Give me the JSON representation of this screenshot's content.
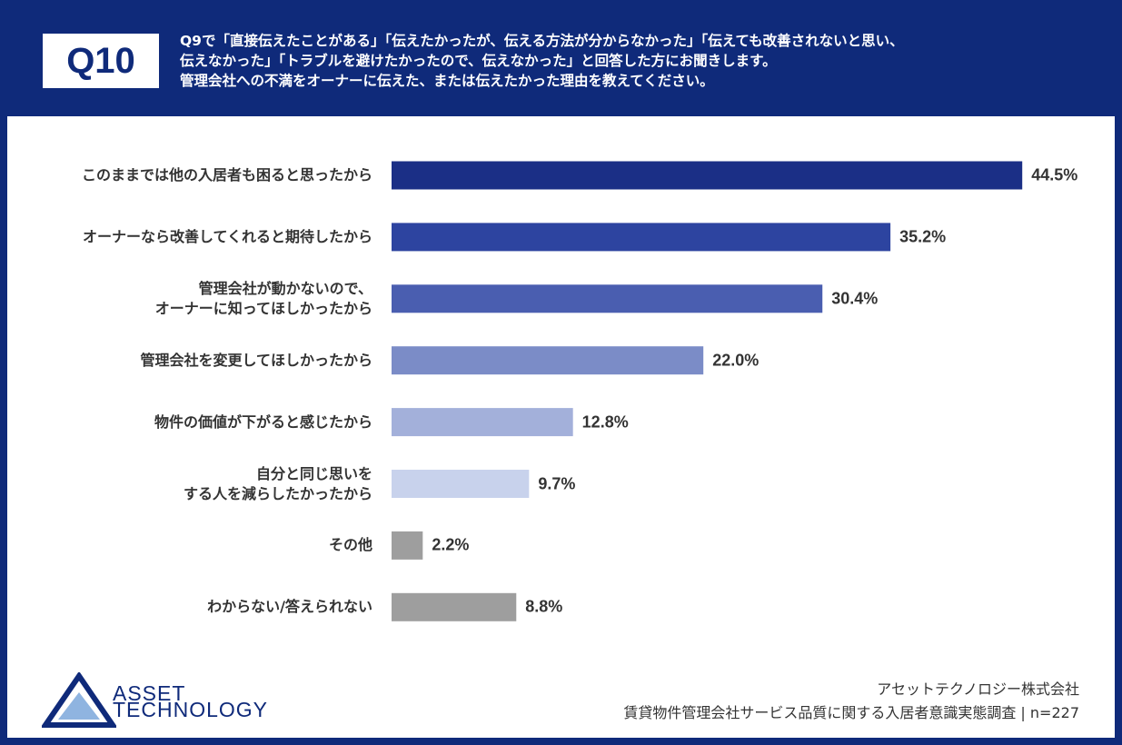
{
  "chart_data": {
    "type": "bar",
    "orientation": "horizontal",
    "title": "Q10",
    "subtitle": "Q9で「直接伝えたことがある」「伝えたかったが、伝える方法が分からなかった」「伝えても改善されないと思い、\n伝えなかった」「トラブルを避けたかったので、伝えなかった」と回答した方にお聞きします。\n管理会社への不満をオーナーに伝えた、または伝えたかった理由を教えてください。",
    "categories": [
      "このままでは他の入居者も困ると思ったから",
      "オーナーなら改善してくれると期待したから",
      "管理会社が動かないので、\nオーナーに知ってほしかったから",
      "管理会社を変更してほしかったから",
      "物件の価値が下がると感じたから",
      "自分と同じ思いを\nする人を減らしたかったから",
      "その他",
      "わからない/答えられない"
    ],
    "values": [
      44.5,
      35.2,
      30.4,
      22.0,
      12.8,
      9.7,
      2.2,
      8.8
    ],
    "value_labels": [
      "44.5%",
      "35.2%",
      "30.4%",
      "22.0%",
      "12.8%",
      "9.7%",
      "2.2%",
      "8.8%"
    ],
    "colors": [
      "#1b2f86",
      "#2d44a0",
      "#4a5eb0",
      "#7b8cc7",
      "#a3b0da",
      "#c8d2ec",
      "#9e9e9e",
      "#9e9e9e"
    ],
    "xlim": [
      0,
      50
    ],
    "logo": [
      "ASSET",
      "TECHNOLOGY"
    ],
    "company": "アセットテクノロジー株式会社",
    "source": "賃貸物件管理会社サービス品質に関する入居者意識実態調査 | n=227"
  }
}
